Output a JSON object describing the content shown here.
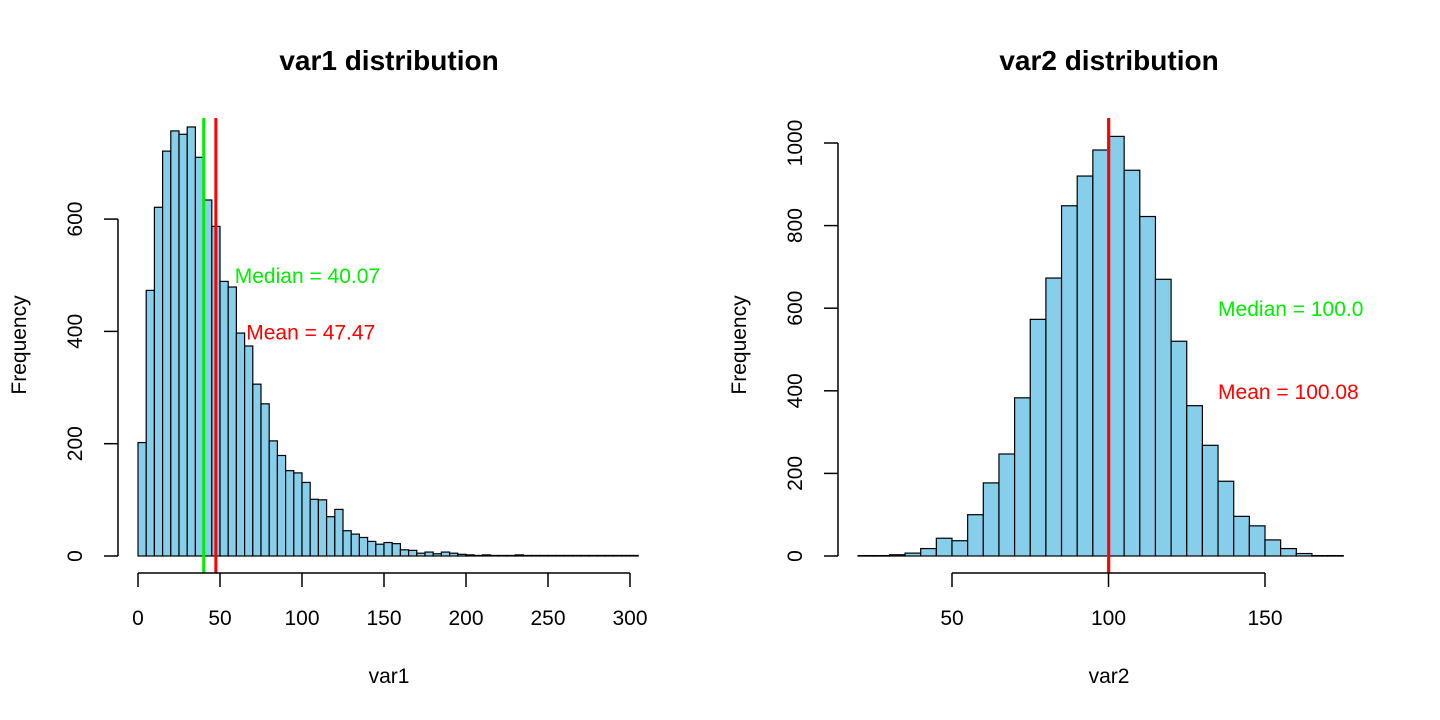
{
  "colors": {
    "bar_fill": "#87ceeb",
    "bar_stroke": "#000000",
    "median": "#00ee00",
    "mean": "#ff0000"
  },
  "chart_data": [
    {
      "type": "histogram",
      "title": "var1 distribution",
      "xlabel": "var1",
      "ylabel": "Frequency",
      "xlim": [
        0,
        305
      ],
      "ylim": [
        0,
        780
      ],
      "bin_width": 5,
      "bin_start": 0,
      "counts": [
        202,
        473,
        621,
        721,
        757,
        751,
        764,
        710,
        634,
        587,
        489,
        479,
        397,
        374,
        306,
        271,
        205,
        179,
        152,
        148,
        131,
        101,
        100,
        70,
        83,
        45,
        39,
        33,
        26,
        21,
        24,
        22,
        11,
        10,
        5,
        7,
        4,
        7,
        5,
        3,
        2,
        1,
        2,
        1,
        1,
        1,
        2,
        1,
        1,
        1,
        1,
        1,
        1,
        1,
        1,
        1,
        1,
        1,
        1,
        1,
        1
      ],
      "xticks": [
        0,
        50,
        100,
        150,
        200,
        250,
        300
      ],
      "yticks": [
        0,
        200,
        400,
        600
      ],
      "median": 40.07,
      "mean": 47.47,
      "annotations": [
        {
          "text": "Median = 40.07",
          "color": "median",
          "x": 59,
          "y": 500
        },
        {
          "text": "Mean = 47.47",
          "color": "mean",
          "x": 66,
          "y": 400
        }
      ]
    },
    {
      "type": "histogram",
      "title": "var2 distribution",
      "xlabel": "var2",
      "ylabel": "Frequency",
      "xlim": [
        20,
        180
      ],
      "ylim": [
        0,
        1040
      ],
      "bin_width": 5,
      "bin_start": 20,
      "counts": [
        1,
        1,
        3,
        7,
        18,
        43,
        37,
        100,
        177,
        247,
        383,
        573,
        673,
        848,
        920,
        983,
        1016,
        934,
        822,
        670,
        520,
        364,
        268,
        181,
        96,
        73,
        39,
        18,
        6,
        1,
        1
      ],
      "xticks": [
        50,
        100,
        150
      ],
      "yticks": [
        0,
        200,
        400,
        600,
        800,
        1000
      ],
      "median": 100.0,
      "mean": 100.08,
      "annotations": [
        {
          "text": "Median = 100.0",
          "color": "median",
          "x": 135,
          "y": 600
        },
        {
          "text": "Mean = 100.08",
          "color": "mean",
          "x": 135,
          "y": 400
        }
      ]
    }
  ]
}
